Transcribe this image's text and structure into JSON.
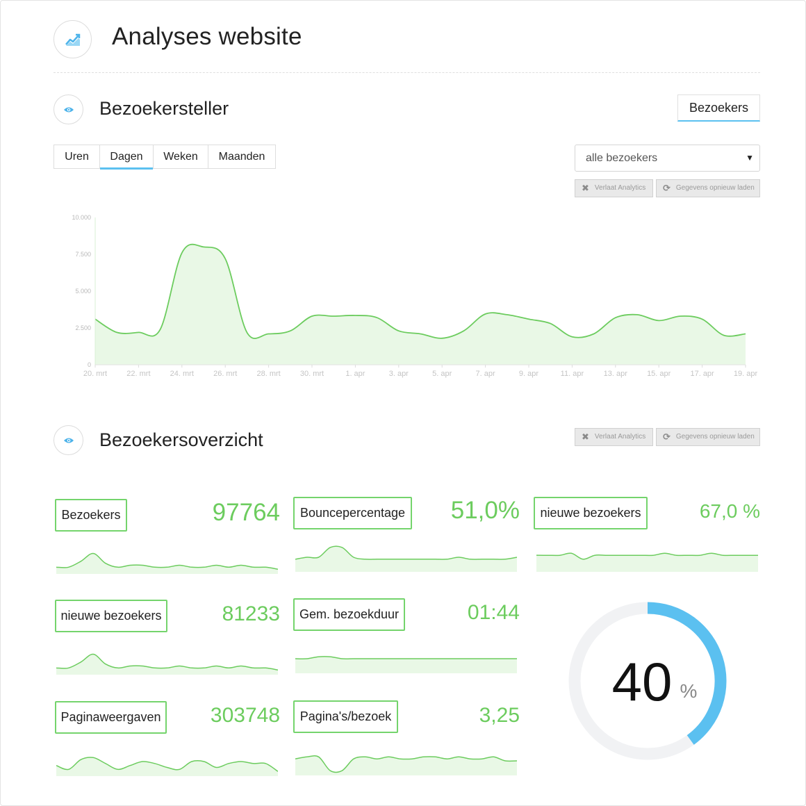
{
  "header": {
    "title": "Analyses website",
    "icon": "chart-trend-icon"
  },
  "visitor_counter": {
    "title": "Bezoekersteller",
    "icon": "eye-icon",
    "tab_button": "Bezoekers",
    "periods": [
      "Uren",
      "Dagen",
      "Weken",
      "Maanden"
    ],
    "active_period": "Dagen",
    "filter_value": "alle bezoekers",
    "leave_button": "Verlaat Analytics",
    "reload_button": "Gegevens opnieuw laden",
    "accent_color": "#5bc0f0",
    "line_color": "#6ccc5e"
  },
  "chart_data": {
    "type": "area",
    "title": "",
    "xlabel": "",
    "ylabel": "",
    "ylim": [
      0,
      10000
    ],
    "y_ticks": [
      "0",
      "2.500",
      "5.000",
      "7.500",
      "10.000"
    ],
    "x_ticks": [
      "20. mrt",
      "22. mrt",
      "24. mrt",
      "26. mrt",
      "28. mrt",
      "30. mrt",
      "1. apr",
      "3. apr",
      "5. apr",
      "7. apr",
      "9. apr",
      "11. apr",
      "13. apr",
      "15. apr",
      "17. apr",
      "19. apr"
    ],
    "grid": false,
    "x": [
      "20. mrt",
      "21. mrt",
      "22. mrt",
      "23. mrt",
      "24. mrt",
      "25. mrt",
      "26. mrt",
      "27. mrt",
      "28. mrt",
      "29. mrt",
      "30. mrt",
      "31. mrt",
      "1. apr",
      "2. apr",
      "3. apr",
      "4. apr",
      "5. apr",
      "6. apr",
      "7. apr",
      "8. apr",
      "9. apr",
      "10. apr",
      "11. apr",
      "12. apr",
      "13. apr",
      "14. apr",
      "15. apr",
      "16. apr",
      "17. apr",
      "18. apr",
      "19. apr"
    ],
    "values": [
      3100,
      2200,
      2200,
      2400,
      7600,
      8000,
      7200,
      2200,
      2100,
      2300,
      3300,
      3300,
      3350,
      3200,
      2300,
      2100,
      1800,
      2300,
      3450,
      3400,
      3100,
      2800,
      1900,
      2100,
      3200,
      3400,
      3000,
      3300,
      3100,
      2000,
      2100
    ]
  },
  "overview": {
    "title": "Bezoekersoverzicht",
    "icon": "eye-icon",
    "leave_button": "Verlaat Analytics",
    "reload_button": "Gegevens opnieuw laden",
    "metrics": [
      {
        "label": "Bezoekers",
        "value": "97764",
        "spark": [
          2,
          2,
          5,
          9,
          4,
          2,
          3,
          3,
          2,
          2,
          3,
          2,
          2,
          3,
          2,
          3,
          2,
          2,
          1
        ]
      },
      {
        "label": "Bouncepercentage",
        "value": "51,0%",
        "spark": [
          5,
          6,
          6,
          11,
          11,
          6,
          5,
          5,
          5,
          5,
          5,
          5,
          5,
          5,
          6,
          5,
          5,
          5,
          5,
          6
        ]
      },
      {
        "label": "nieuwe bezoekers",
        "value": "67,0 %",
        "spark": [
          7,
          7,
          7,
          8,
          5,
          7,
          7,
          7,
          7,
          7,
          7,
          8,
          7,
          7,
          7,
          8,
          7,
          7,
          7,
          7
        ]
      },
      {
        "label": "nieuwe bezoekers",
        "value": "81233",
        "spark": [
          2,
          2,
          5,
          9,
          4,
          2,
          3,
          3,
          2,
          2,
          3,
          2,
          2,
          3,
          2,
          3,
          2,
          2,
          1
        ]
      },
      {
        "label": "Gem. bezoekduur",
        "value": "01:44",
        "spark": [
          6,
          6,
          7,
          7,
          6,
          6,
          6,
          6,
          6,
          6,
          6,
          6,
          6,
          6,
          6,
          6,
          6,
          6,
          6,
          6
        ]
      },
      {
        "label": "Paginaweergaven",
        "value": "303748",
        "spark": [
          4,
          2,
          7,
          8,
          5,
          2,
          4,
          6,
          5,
          3,
          2,
          6,
          6,
          3,
          5,
          6,
          5,
          5,
          1
        ]
      },
      {
        "label": "Pagina's/bezoek",
        "value": "3,25",
        "spark": [
          7,
          8,
          8,
          1,
          1,
          7,
          8,
          7,
          8,
          7,
          7,
          8,
          8,
          7,
          8,
          7,
          7,
          8,
          6,
          6
        ]
      }
    ],
    "gauge": {
      "value": 40,
      "unit": "%",
      "color": "#5bc0f0",
      "track_color": "#f1f2f4"
    }
  }
}
